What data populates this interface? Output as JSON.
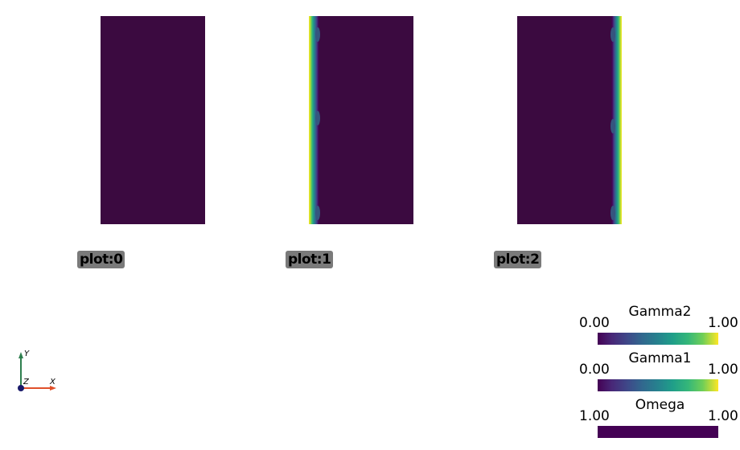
{
  "plots": [
    {
      "label": "plot:0"
    },
    {
      "label": "plot:1"
    },
    {
      "label": "plot:2"
    }
  ],
  "colorbars": [
    {
      "title": "Gamma2",
      "min": "0.00",
      "max": "1.00",
      "colormap": "viridis"
    },
    {
      "title": "Gamma1",
      "min": "0.00",
      "max": "1.00",
      "colormap": "viridis"
    },
    {
      "title": "Omega",
      "min": "1.00",
      "max": "1.00",
      "colormap": "viridis"
    }
  ],
  "axes": {
    "x_label": "X",
    "y_label": "Y",
    "z_label": "Z"
  },
  "colors": {
    "background": "#ffffff",
    "field_low": "#440154",
    "field_high": "#fde725",
    "label_box": "#7a7a7a",
    "x_axis": "#e0502a",
    "y_axis": "#2f7f4f",
    "z_axis": "#1a1a6a"
  }
}
